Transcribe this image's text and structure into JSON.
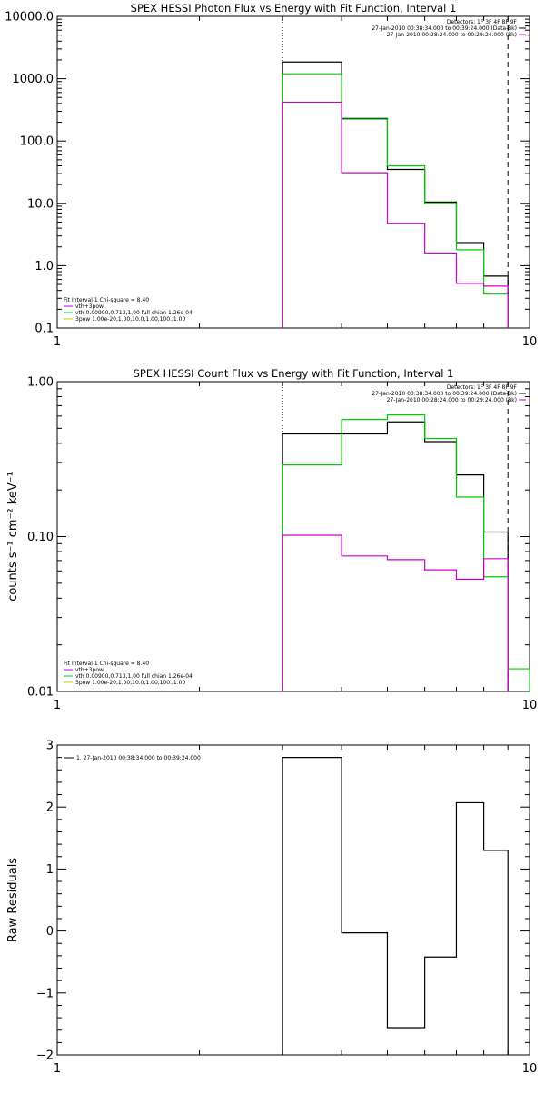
{
  "colors": {
    "data": "#000000",
    "fit_total": "#cc00cc",
    "vth": "#00cc00",
    "powerlaw": "#cccc00",
    "background": "#ffffff",
    "axis": "#000000"
  },
  "chart_data": [
    {
      "type": "line",
      "title": "SPEX HESSI Photon Flux vs Energy with Fit Function, Interval 1",
      "xlabel": "",
      "ylabel": "",
      "xscale": "log",
      "yscale": "log",
      "xlim": [
        1,
        10
      ],
      "ylim": [
        0.1,
        10000
      ],
      "x_ticks": [
        1,
        10
      ],
      "x_tick_labels": [
        "1",
        "10"
      ],
      "y_ticks": [
        0.1,
        1,
        10,
        100,
        1000,
        10000
      ],
      "y_tick_labels": [
        "0.1",
        "1.0",
        "10.0",
        "100.0",
        "1000.0",
        "10000.0"
      ],
      "bin_edges": [
        3.0,
        4.0,
        5.0,
        6.0,
        7.0,
        8.0,
        9.0
      ],
      "vlines": [
        {
          "x": 3.0,
          "style": "dotted"
        },
        {
          "x": 9.0,
          "style": "dashed"
        }
      ],
      "legend_top_right": [
        "Detectors: 1F 3F 4F 8F 9F",
        "27-Jan-2010 00:38:34.000 to 00:39:24.000 (Data-Bk)",
        "27-Jan-2010 00:28:24.000 to 00:29:24.000 (Bk)"
      ],
      "legend_bottom_left": [
        "Fit Interval 1    Chi-square = 8.40",
        "vth+3pow",
        "vth 0.00900,0.713,1.00   full chian 1.26e-04",
        "3pow 1.00e-20,1.00,10.0,1.00,100.,1.00"
      ],
      "series": [
        {
          "name": "",
          "color": "#000000",
          "values": [
            1850,
            230,
            35,
            10.5,
            2.35,
            0.68
          ]
        },
        {
          "name": "",
          "color": "#00cc00",
          "values": [
            1200,
            225,
            40,
            10.0,
            1.8,
            0.35
          ]
        },
        {
          "name": "",
          "color": "#cc00cc",
          "values": [
            420,
            31,
            4.8,
            1.6,
            0.52,
            0.47
          ]
        }
      ]
    },
    {
      "type": "line",
      "title": "SPEX HESSI Count Flux vs Energy with Fit Function, Interval 1",
      "xlabel": "",
      "ylabel": "counts s⁻¹ cm⁻² keV⁻¹",
      "xscale": "log",
      "yscale": "log",
      "xlim": [
        1,
        10
      ],
      "ylim": [
        0.01,
        1.0
      ],
      "x_ticks": [
        1,
        10
      ],
      "x_tick_labels": [
        "1",
        "10"
      ],
      "y_ticks": [
        0.01,
        0.1,
        1.0
      ],
      "y_tick_labels": [
        "0.01",
        "0.10",
        "1.00"
      ],
      "bin_edges": [
        3.0,
        4.0,
        5.0,
        6.0,
        7.0,
        8.0,
        9.0,
        10.0
      ],
      "vlines": [
        {
          "x": 3.0,
          "style": "dotted"
        },
        {
          "x": 9.0,
          "style": "dashed"
        }
      ],
      "legend_top_right": [
        "Detectors: 1F 3F 4F 8F 9F",
        "27-Jan-2010 00:38:34.000 to 00:39:24.000 (Data-Bk)",
        "27-Jan-2010 00:28:24.000 to 00:29:24.000 (Bk)"
      ],
      "legend_bottom_left": [
        "Fit Interval 1    Chi-square = 8.40",
        "vth+3pow",
        "vth 0.00900,0.713,1.00   full chian 1.26e-04",
        "3pow 1.00e-20,1.00,10.0,1.00,100.,1.00"
      ],
      "series": [
        {
          "name": "",
          "color": "#000000",
          "values": [
            0.46,
            0.46,
            0.55,
            0.41,
            0.25,
            0.107,
            null
          ]
        },
        {
          "name": "",
          "color": "#00cc00",
          "values": [
            0.29,
            0.57,
            0.61,
            0.43,
            0.18,
            0.055,
            0.014
          ]
        },
        {
          "name": "",
          "color": "#cc00cc",
          "values": [
            0.102,
            0.075,
            0.071,
            0.061,
            0.053,
            0.072,
            null
          ]
        }
      ]
    },
    {
      "type": "line",
      "title": "",
      "xlabel": "",
      "ylabel": "Raw Residuals",
      "xscale": "log",
      "yscale": "linear",
      "xlim": [
        1,
        10
      ],
      "ylim": [
        -2,
        3
      ],
      "x_ticks": [
        1,
        10
      ],
      "x_tick_labels": [
        "1",
        "10"
      ],
      "y_ticks": [
        -2,
        -1,
        0,
        1,
        2,
        3
      ],
      "y_tick_labels": [
        "−2",
        "−1",
        "0",
        "1",
        "2",
        "3"
      ],
      "bin_edges": [
        3.0,
        4.0,
        5.0,
        6.0,
        7.0,
        8.0,
        9.0
      ],
      "legend_top_left": [
        "1. 27-Jan-2010 00:38:34.000 to 00:39:24.000"
      ],
      "series": [
        {
          "name": "1. 27-Jan-2010 00:38:34.000 to 00:39:24.000",
          "color": "#000000",
          "values": [
            2.8,
            -0.03,
            -1.56,
            -0.42,
            2.07,
            1.3
          ]
        }
      ]
    }
  ]
}
